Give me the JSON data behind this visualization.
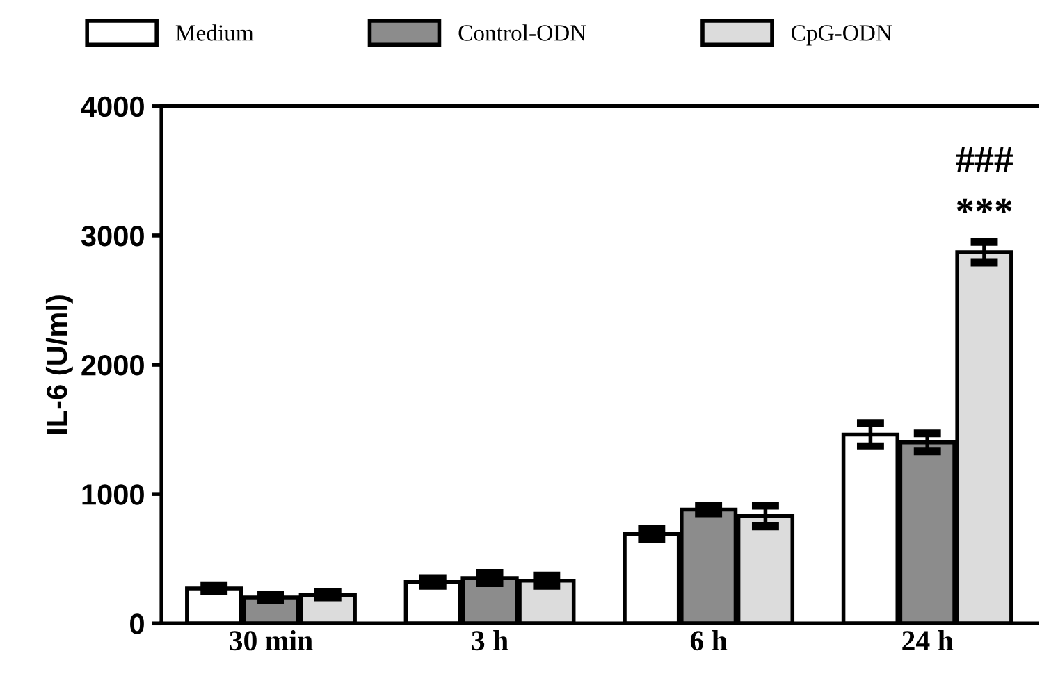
{
  "chart_data": {
    "type": "bar",
    "ylabel": "IL-6 (U/ml)",
    "categories": [
      "30 min",
      "3 h",
      "6 h",
      "24 h"
    ],
    "series": [
      {
        "name": "Medium",
        "color": "#ffffff",
        "values": [
          270,
          320,
          690,
          1460
        ],
        "errors": [
          20,
          30,
          40,
          90
        ]
      },
      {
        "name": "Control-ODN",
        "color": "#8c8c8c",
        "values": [
          200,
          350,
          880,
          1400
        ],
        "errors": [
          20,
          40,
          30,
          70
        ]
      },
      {
        "name": "CpG-ODN",
        "color": "#dcdcdc",
        "values": [
          220,
          330,
          830,
          2870
        ],
        "errors": [
          20,
          40,
          80,
          80
        ]
      }
    ],
    "ylim": [
      0,
      4000
    ],
    "yticks": [
      0,
      1000,
      2000,
      3000,
      4000
    ],
    "legend": "top",
    "annotations": [
      "***",
      "###"
    ]
  }
}
